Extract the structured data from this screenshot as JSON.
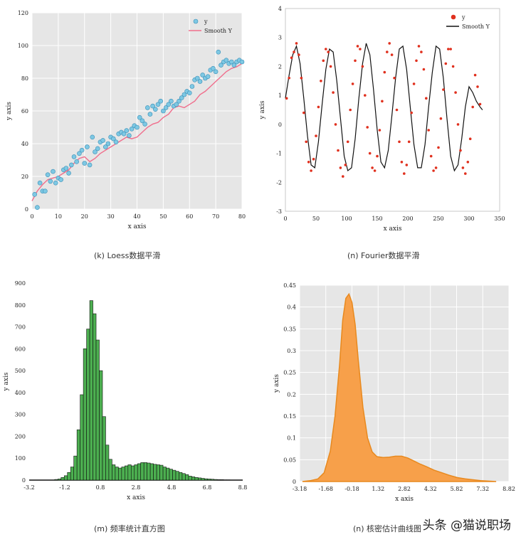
{
  "captions": [
    "(k) Loess数据平滑",
    "(n) Fourier数据平滑",
    "(m) 频率统计直方图",
    "(n) 核密估计曲线图"
  ],
  "watermark": "头条 @猫说职场",
  "colors": {
    "plot_bg": "#E6E6E6",
    "grid": "#FFFFFF",
    "scatter_fill": "#7EC8E3",
    "scatter_stroke": "#3A8FB7",
    "loess_line": "#F06E8C",
    "fourier_points": "#E0301E",
    "fourier_line": "#111111",
    "hist_fill": "#4CAF50",
    "hist_stroke": "#111111",
    "kde_fill": "#F7A04A",
    "kde_stroke": "#E8891E"
  },
  "chart_data": [
    {
      "type": "scatter",
      "xlabel": "x axis",
      "ylabel": "y axis",
      "xlim": [
        0,
        80
      ],
      "ylim": [
        0,
        120
      ],
      "xticks": [
        "0",
        "10",
        "20",
        "30",
        "40",
        "50",
        "60",
        "70",
        "80"
      ],
      "yticks": [
        "0",
        "20",
        "40",
        "60",
        "80",
        "100",
        "120"
      ],
      "legend": {
        "placement": "top-right",
        "entries": [
          "y",
          "Smooth Y"
        ]
      },
      "series": [
        {
          "name": "y",
          "kind": "points",
          "x": [
            1,
            2,
            3,
            4,
            5,
            6,
            7,
            8,
            9,
            10,
            11,
            12,
            13,
            14,
            15,
            16,
            17,
            18,
            19,
            20,
            21,
            22,
            23,
            24,
            25,
            26,
            27,
            28,
            29,
            30,
            31,
            32,
            33,
            34,
            35,
            36,
            37,
            38,
            39,
            40,
            41,
            42,
            43,
            44,
            45,
            46,
            47,
            48,
            49,
            50,
            51,
            52,
            53,
            54,
            55,
            56,
            57,
            58,
            59,
            60,
            61,
            62,
            63,
            64,
            65,
            66,
            67,
            68,
            69,
            70,
            71,
            72,
            73,
            74,
            75,
            76,
            77,
            78,
            79,
            80
          ],
          "y": [
            9,
            1,
            16,
            11,
            11,
            21,
            17,
            23,
            16,
            19,
            18,
            24,
            25,
            22,
            27,
            32,
            29,
            34,
            36,
            28,
            38,
            27,
            44,
            35,
            37,
            41,
            42,
            38,
            40,
            44,
            43,
            41,
            46,
            47,
            46,
            48,
            45,
            49,
            51,
            50,
            56,
            54,
            52,
            62,
            58,
            63,
            61,
            64,
            66,
            60,
            62,
            64,
            66,
            63,
            64,
            66,
            68,
            70,
            72,
            71,
            75,
            79,
            80,
            78,
            82,
            80,
            81,
            85,
            86,
            84,
            96,
            88,
            90,
            91,
            89,
            90,
            88,
            90,
            91,
            90
          ]
        },
        {
          "name": "Smooth Y",
          "kind": "line",
          "x": [
            0,
            2,
            4,
            6,
            8,
            10,
            12,
            14,
            16,
            18,
            20,
            22,
            24,
            26,
            28,
            30,
            32,
            34,
            36,
            38,
            40,
            42,
            44,
            46,
            48,
            50,
            52,
            54,
            56,
            58,
            60,
            62,
            64,
            66,
            68,
            70,
            72,
            74,
            76,
            78,
            80
          ],
          "y": [
            5,
            11,
            15,
            18,
            19,
            20,
            22,
            24,
            28,
            31,
            32,
            29,
            31,
            34,
            36,
            38,
            40,
            42,
            44,
            43,
            44,
            47,
            50,
            52,
            53,
            56,
            58,
            62,
            63,
            62,
            64,
            66,
            70,
            72,
            75,
            78,
            81,
            84,
            86,
            87,
            89
          ]
        }
      ]
    },
    {
      "type": "scatter",
      "xlabel": "x axis",
      "ylabel": "y axis",
      "xlim": [
        0,
        350
      ],
      "ylim": [
        -3,
        4
      ],
      "xticks": [
        "0",
        "50",
        "100",
        "150",
        "200",
        "250",
        "300",
        "350"
      ],
      "yticks": [
        "-3",
        "-2",
        "-1",
        "0",
        "1",
        "2",
        "3",
        "4"
      ],
      "grid": false,
      "legend": {
        "placement": "top-right",
        "entries": [
          "y",
          "Smooth Y"
        ]
      },
      "series": [
        {
          "name": "y",
          "kind": "points",
          "x": [
            2,
            6,
            10,
            14,
            18,
            22,
            26,
            30,
            34,
            38,
            42,
            46,
            50,
            54,
            58,
            62,
            66,
            70,
            74,
            78,
            82,
            86,
            90,
            94,
            98,
            102,
            106,
            110,
            114,
            118,
            122,
            126,
            130,
            134,
            138,
            142,
            146,
            150,
            154,
            158,
            162,
            166,
            170,
            174,
            178,
            182,
            186,
            190,
            194,
            198,
            202,
            206,
            210,
            214,
            218,
            222,
            226,
            230,
            234,
            238,
            242,
            246,
            250,
            254,
            258,
            262,
            266,
            270,
            274,
            278,
            282,
            286,
            290,
            294,
            298,
            302,
            306,
            310,
            314,
            318
          ],
          "y": [
            0.9,
            1.6,
            2.3,
            2.5,
            2.8,
            2.4,
            1.6,
            0.4,
            -0.6,
            -1.3,
            -1.6,
            -1.2,
            -0.4,
            0.6,
            1.5,
            2.2,
            2.6,
            2.5,
            2.0,
            1.1,
            0.0,
            -0.9,
            -1.5,
            -1.8,
            -1.4,
            -0.6,
            0.5,
            1.4,
            2.2,
            2.7,
            2.6,
            2.0,
            1.0,
            -0.1,
            -1.0,
            -1.5,
            -1.6,
            -1.1,
            -0.2,
            0.8,
            1.8,
            2.5,
            2.8,
            2.4,
            1.6,
            0.5,
            -0.6,
            -1.3,
            -1.7,
            -1.4,
            -0.6,
            0.4,
            1.4,
            2.2,
            2.7,
            2.5,
            1.9,
            0.9,
            -0.2,
            -1.1,
            -1.6,
            -1.5,
            -0.8,
            0.2,
            1.2,
            2.1,
            2.6,
            2.6,
            2.0,
            1.1,
            0.0,
            -0.9,
            -1.5,
            -1.7,
            -1.3,
            -0.5,
            0.6,
            1.7,
            1.3,
            0.7
          ]
        },
        {
          "name": "Smooth Y",
          "kind": "line",
          "x": [
            0,
            6,
            12,
            18,
            24,
            30,
            36,
            42,
            48,
            54,
            60,
            66,
            72,
            78,
            84,
            90,
            96,
            102,
            108,
            114,
            120,
            126,
            132,
            138,
            144,
            150,
            156,
            162,
            168,
            174,
            180,
            186,
            192,
            198,
            204,
            210,
            216,
            222,
            228,
            234,
            240,
            246,
            252,
            258,
            264,
            270,
            276,
            282,
            288,
            294,
            300,
            306,
            312,
            318,
            322
          ],
          "y": [
            0.9,
            1.7,
            2.4,
            2.7,
            2.1,
            0.9,
            -0.4,
            -1.4,
            -1.5,
            -0.6,
            0.7,
            1.9,
            2.6,
            2.5,
            1.5,
            0.2,
            -1.1,
            -1.6,
            -1.5,
            -0.5,
            0.9,
            2.1,
            2.8,
            2.4,
            1.2,
            -0.2,
            -1.3,
            -1.5,
            -0.9,
            0.3,
            1.6,
            2.6,
            2.7,
            1.9,
            0.6,
            -0.7,
            -1.5,
            -1.5,
            -0.7,
            0.6,
            1.8,
            2.7,
            2.6,
            1.6,
            0.2,
            -1.1,
            -1.6,
            -1.4,
            -0.5,
            0.6,
            1.3,
            1.1,
            0.8,
            0.6,
            0.5
          ]
        }
      ]
    },
    {
      "type": "bar",
      "xlabel": "x axis",
      "ylabel": "y axis",
      "xlim": [
        -3.2,
        10.2
      ],
      "ylim": [
        0,
        900
      ],
      "xticks": [
        "-3.2",
        "-1.2",
        "0.8",
        "2.8",
        "4.8",
        "6.8",
        "8.8"
      ],
      "yticks": [
        "0",
        "100",
        "200",
        "300",
        "400",
        "500",
        "600",
        "700",
        "800",
        "900"
      ],
      "bin_start": -1.6,
      "bin_width": 0.2,
      "values": [
        3,
        5,
        12,
        20,
        35,
        60,
        110,
        230,
        390,
        600,
        690,
        820,
        760,
        640,
        500,
        290,
        160,
        95,
        70,
        60,
        55,
        60,
        65,
        70,
        65,
        70,
        75,
        80,
        80,
        78,
        75,
        72,
        70,
        68,
        60,
        55,
        50,
        45,
        40,
        35,
        30,
        25,
        18,
        15,
        12,
        10,
        8,
        6,
        5,
        4,
        3,
        2,
        2,
        1,
        1
      ]
    },
    {
      "type": "area",
      "xlabel": "x axis",
      "ylabel": "y axis",
      "xlim": [
        -3.18,
        10.32
      ],
      "ylim": [
        0,
        0.45
      ],
      "xticks": [
        "-3.18",
        "-1.68",
        "-0.18",
        "1.32",
        "2.82",
        "4.32",
        "5.82",
        "7.32",
        "8.82"
      ],
      "yticks": [
        "0",
        "0.05",
        "0.1",
        "0.15",
        "0.2",
        "0.25",
        "0.3",
        "0.35",
        "0.4",
        "0.45"
      ],
      "x": [
        -3.0,
        -2.5,
        -2.0,
        -1.6,
        -1.2,
        -0.9,
        -0.6,
        -0.4,
        -0.2,
        0.0,
        0.2,
        0.4,
        0.6,
        0.9,
        1.2,
        1.5,
        1.8,
        2.2,
        2.6,
        3.0,
        3.4,
        3.8,
        4.2,
        4.6,
        5.0,
        5.5,
        6.0,
        6.5,
        7.0,
        7.5,
        8.0,
        8.5,
        9.0,
        9.5
      ],
      "y": [
        0.0,
        0.002,
        0.006,
        0.02,
        0.07,
        0.15,
        0.27,
        0.37,
        0.42,
        0.43,
        0.41,
        0.36,
        0.28,
        0.17,
        0.1,
        0.068,
        0.057,
        0.055,
        0.056,
        0.058,
        0.058,
        0.054,
        0.047,
        0.04,
        0.034,
        0.026,
        0.02,
        0.014,
        0.009,
        0.006,
        0.004,
        0.002,
        0.001,
        0.0
      ]
    }
  ]
}
